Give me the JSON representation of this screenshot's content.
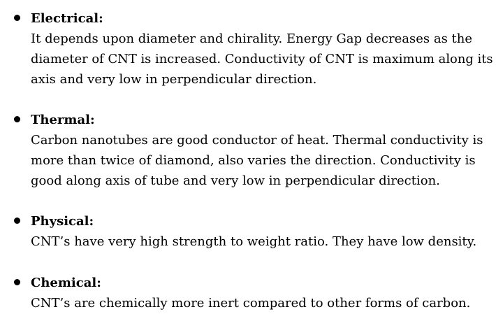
{
  "sections": [
    {
      "heading": "Electrical:",
      "lines": [
        "It depends upon diameter and chirality. Energy Gap decreases as the",
        "diameter of CNT is increased. Conductivity of CNT is maximum along its",
        "axis and very low in perpendicular direction."
      ]
    },
    {
      "heading": "Thermal:",
      "lines": [
        "Carbon nanotubes are good conductor of heat. Thermal conductivity is",
        "more than twice of diamond, also varies the direction. Conductivity is",
        "good along axis of tube and very low in perpendicular direction."
      ]
    },
    {
      "heading": "Physical:",
      "lines": [
        "CNT’s have very high strength to weight ratio. They have low density."
      ]
    },
    {
      "heading": "Chemical:",
      "lines": [
        "CNT’s are chemically more inert compared to other forms of carbon."
      ]
    }
  ]
}
